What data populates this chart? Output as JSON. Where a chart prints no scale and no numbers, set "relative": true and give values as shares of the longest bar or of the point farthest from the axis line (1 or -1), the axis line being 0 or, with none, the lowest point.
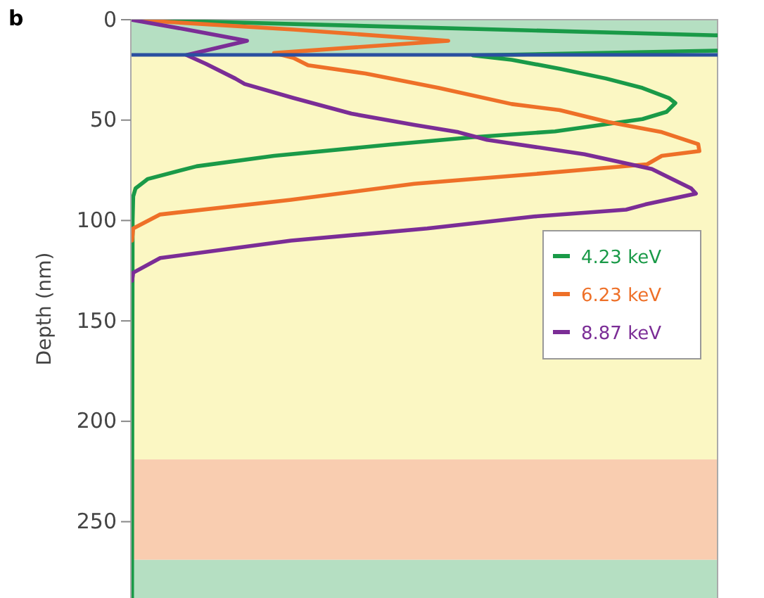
{
  "chart_data": {
    "type": "line",
    "orientation": "horizontal",
    "relative": true,
    "ylabel": "Depth (nm)",
    "annotations": [
      "b"
    ],
    "ylim": [
      288,
      0
    ],
    "yticks": [
      0,
      50,
      100,
      150,
      200,
      250
    ],
    "legend": "right",
    "grid": false,
    "series": [
      {
        "name": "4.23 keV",
        "color": "#1a9a48",
        "x": [
          0,
          7.8,
          11,
          15.4,
          17.8,
          20,
          24.4,
          29.3,
          34,
          39,
          41.5,
          45.9,
          49.5,
          55.6,
          58.5,
          62.2,
          67.8,
          73,
          79.3,
          84,
          88,
          100,
          288
        ],
        "values": [
          0,
          1,
          null,
          1,
          0.583,
          0.649,
          0.731,
          0.81,
          0.872,
          0.917,
          0.928,
          0.913,
          0.872,
          0.723,
          0.583,
          0.442,
          0.244,
          0.112,
          0.029,
          0.008,
          0.004,
          0.003,
          0.002
        ]
      },
      {
        "name": "6.23 keV",
        "color": "#ee7028",
        "x": [
          0,
          4.9,
          10.5,
          16.6,
          19,
          22.7,
          26.8,
          34,
          42,
          45,
          51,
          56,
          62,
          65.4,
          67.8,
          72,
          76.8,
          81.7,
          89.7,
          97,
          104,
          110
        ],
        "values": [
          0,
          0.277,
          0.541,
          0.244,
          0.277,
          0.302,
          0.4,
          0.525,
          0.649,
          0.731,
          0.814,
          0.905,
          0.967,
          0.969,
          0.905,
          0.88,
          0.69,
          0.483,
          0.273,
          0.05,
          0.004,
          0.002
        ]
      },
      {
        "name": "8.87 keV",
        "color": "#7b2d96",
        "x": [
          0,
          4.9,
          10.5,
          17.6,
          22,
          29.3,
          32,
          39,
          46.8,
          52.4,
          56,
          59.8,
          67,
          74.4,
          84,
          86.6,
          92,
          94.6,
          98,
          104,
          110,
          118.7,
          126,
          130
        ],
        "values": [
          0,
          0.095,
          0.198,
          0.095,
          0.128,
          0.178,
          0.194,
          0.277,
          0.376,
          0.483,
          0.558,
          0.607,
          0.773,
          0.888,
          0.955,
          0.963,
          0.877,
          0.844,
          0.687,
          0.505,
          0.273,
          0.05,
          0.004,
          0.002
        ]
      }
    ],
    "bands": [
      {
        "axis": "y",
        "from": 0,
        "to": 17.5,
        "color": "#b5dfc2"
      },
      {
        "axis": "y",
        "from": 17.5,
        "to": 219,
        "color": "#fbf7c3"
      },
      {
        "axis": "y",
        "from": 219,
        "to": 269,
        "color": "#f9cdb0"
      },
      {
        "axis": "y",
        "from": 269,
        "to": 288,
        "color": "#b5dfc2"
      }
    ],
    "ref_lines": [
      {
        "axis": "y",
        "value": 17.5,
        "color": "#2a4fa0",
        "line_style": "solid"
      }
    ]
  }
}
